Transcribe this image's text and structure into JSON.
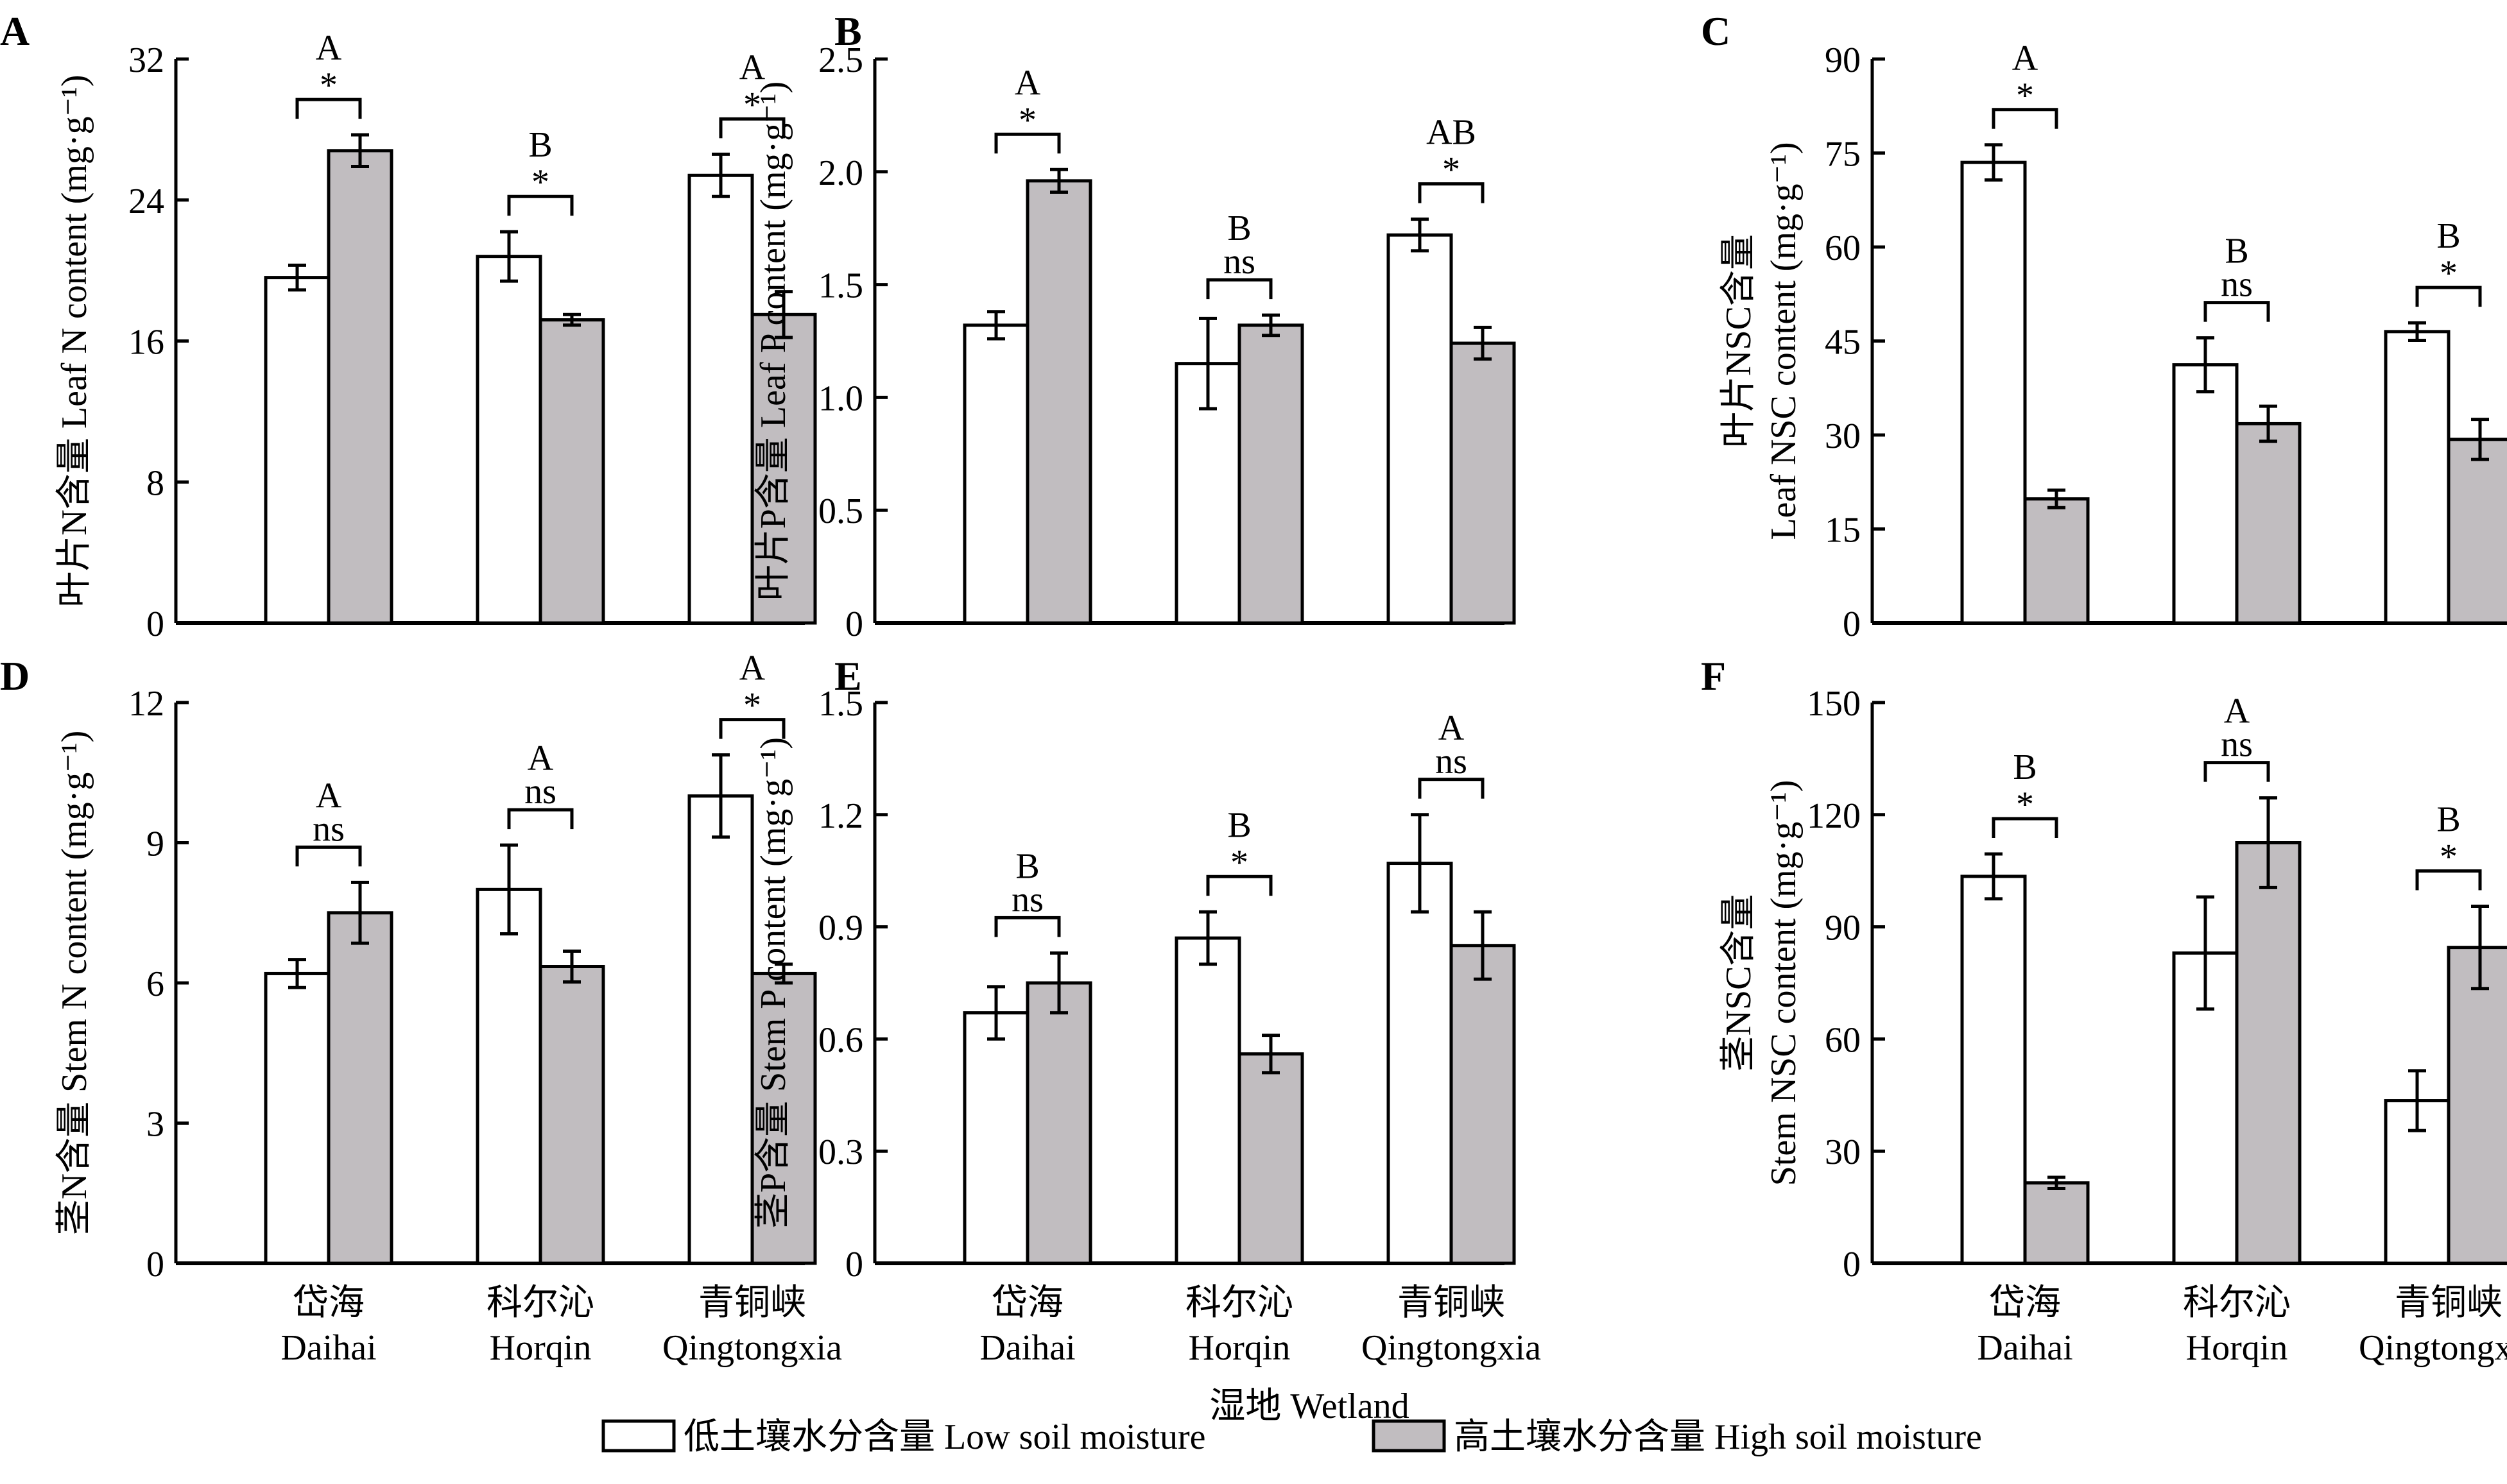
{
  "chart_data": [
    {
      "panel": "A",
      "type": "bar",
      "ylabel_cn": "叶片N含量",
      "ylabel": "Leaf N content (mg·g⁻¹)",
      "yticks": [
        "0",
        "8",
        "16",
        "24",
        "32"
      ],
      "ylim": [
        0,
        32
      ],
      "categories": [
        "Daihai",
        "Horqin",
        "Qingtongxia"
      ],
      "series": [
        {
          "name": "Low soil moisture",
          "values": [
            19.6,
            20.8,
            25.4
          ],
          "errors": [
            0.7,
            1.4,
            1.2
          ]
        },
        {
          "name": "High soil moisture",
          "values": [
            26.8,
            17.2,
            17.5
          ],
          "errors": [
            0.9,
            0.3,
            1.3
          ]
        }
      ],
      "annotations": [
        {
          "letter": "A",
          "sig": "*"
        },
        {
          "letter": "B",
          "sig": "*"
        },
        {
          "letter": "A",
          "sig": "*"
        }
      ]
    },
    {
      "panel": "B",
      "type": "bar",
      "ylabel_cn": "叶片P含量",
      "ylabel": "Leaf P content (mg·g⁻¹)",
      "yticks": [
        "0",
        "0.5",
        "1.0",
        "1.5",
        "2.0",
        "2.5"
      ],
      "ylim": [
        0,
        2.5
      ],
      "categories": [
        "Daihai",
        "Horqin",
        "Qingtongxia"
      ],
      "series": [
        {
          "name": "Low soil moisture",
          "values": [
            1.32,
            1.15,
            1.72
          ],
          "errors": [
            0.06,
            0.2,
            0.07
          ]
        },
        {
          "name": "High soil moisture",
          "values": [
            1.96,
            1.32,
            1.24
          ],
          "errors": [
            0.05,
            0.045,
            0.07
          ]
        }
      ],
      "annotations": [
        {
          "letter": "A",
          "sig": "*"
        },
        {
          "letter": "B",
          "sig": "ns"
        },
        {
          "letter": "AB",
          "sig": "*"
        }
      ]
    },
    {
      "panel": "C",
      "type": "bar",
      "ylabel_cn": "叶片NSC含量",
      "ylabel": "Leaf NSC content (mg·g⁻¹)",
      "yticks": [
        "0",
        "15",
        "30",
        "45",
        "60",
        "75",
        "90"
      ],
      "ylim": [
        0,
        90
      ],
      "categories": [
        "Daihai",
        "Horqin",
        "Qingtongxia"
      ],
      "series": [
        {
          "name": "Low soil moisture",
          "values": [
            73.5,
            41.2,
            46.5
          ],
          "errors": [
            2.8,
            4.3,
            1.4
          ]
        },
        {
          "name": "High soil moisture",
          "values": [
            19.8,
            31.8,
            29.3
          ],
          "errors": [
            1.4,
            2.8,
            3.2
          ]
        }
      ],
      "annotations": [
        {
          "letter": "A",
          "sig": "*"
        },
        {
          "letter": "B",
          "sig": "ns"
        },
        {
          "letter": "B",
          "sig": "*"
        }
      ]
    },
    {
      "panel": "D",
      "type": "bar",
      "ylabel_cn": "茎N含量",
      "ylabel": "Stem N content (mg·g⁻¹)",
      "yticks": [
        "0",
        "3",
        "6",
        "9",
        "12"
      ],
      "ylim": [
        0,
        12
      ],
      "categories": [
        "Daihai",
        "Horqin",
        "Qingtongxia"
      ],
      "series": [
        {
          "name": "Low soil moisture",
          "values": [
            6.2,
            8.0,
            10.0
          ],
          "errors": [
            0.3,
            0.95,
            0.88
          ]
        },
        {
          "name": "High soil moisture",
          "values": [
            7.5,
            6.35,
            6.2
          ],
          "errors": [
            0.65,
            0.33,
            0.2
          ]
        }
      ],
      "annotations": [
        {
          "letter": "A",
          "sig": "ns"
        },
        {
          "letter": "A",
          "sig": "ns"
        },
        {
          "letter": "A",
          "sig": "*"
        }
      ]
    },
    {
      "panel": "E",
      "type": "bar",
      "ylabel_cn": "茎P含量",
      "ylabel": "Stem P content (mg·g⁻¹)",
      "yticks": [
        "0",
        "0.3",
        "0.6",
        "0.9",
        "1.2",
        "1.5"
      ],
      "ylim": [
        0,
        1.5
      ],
      "categories": [
        "Daihai",
        "Horqin",
        "Qingtongxia"
      ],
      "series": [
        {
          "name": "Low soil moisture",
          "values": [
            0.67,
            0.87,
            1.07
          ],
          "errors": [
            0.07,
            0.07,
            0.13
          ]
        },
        {
          "name": "High soil moisture",
          "values": [
            0.75,
            0.56,
            0.85
          ],
          "errors": [
            0.08,
            0.05,
            0.09
          ]
        }
      ],
      "annotations": [
        {
          "letter": "B",
          "sig": "ns"
        },
        {
          "letter": "B",
          "sig": "*"
        },
        {
          "letter": "A",
          "sig": "ns"
        }
      ]
    },
    {
      "panel": "F",
      "type": "bar",
      "ylabel_cn": "茎NSC含量",
      "ylabel": "Stem NSC content (mg·g⁻¹)",
      "yticks": [
        "0",
        "30",
        "60",
        "90",
        "120",
        "150"
      ],
      "ylim": [
        0,
        150
      ],
      "categories": [
        "Daihai",
        "Horqin",
        "Qingtongxia"
      ],
      "series": [
        {
          "name": "Low soil moisture",
          "values": [
            103.5,
            83.0,
            43.5
          ],
          "errors": [
            6.0,
            15.0,
            8.0
          ]
        },
        {
          "name": "High soil moisture",
          "values": [
            21.5,
            112.5,
            84.5
          ],
          "errors": [
            1.5,
            12.0,
            11.0
          ]
        }
      ],
      "annotations": [
        {
          "letter": "B",
          "sig": "*"
        },
        {
          "letter": "A",
          "sig": "ns"
        },
        {
          "letter": "B",
          "sig": "*"
        }
      ]
    }
  ],
  "x_categories_cn": [
    "岱海",
    "科尔沁",
    "青铜峡"
  ],
  "x_categories_en": [
    "Daihai",
    "Horqin",
    "Qingtongxia"
  ],
  "xtitle": "湿地 Wetland",
  "legend": [
    {
      "label": "低土壤水分含量 Low soil moisture",
      "color": "#ffffff"
    },
    {
      "label": "高土壤水分含量 High soil moisture",
      "color": "#c1bdc0"
    }
  ],
  "colors": {
    "low": "#ffffff",
    "high": "#c1bdc0",
    "stroke": "#000000"
  }
}
